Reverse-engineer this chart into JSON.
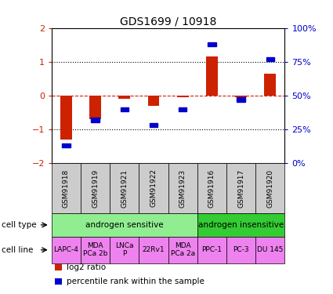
{
  "title": "GDS1699 / 10918",
  "samples": [
    "GSM91918",
    "GSM91919",
    "GSM91921",
    "GSM91922",
    "GSM91923",
    "GSM91916",
    "GSM91917",
    "GSM91920"
  ],
  "log2_ratio": [
    -1.3,
    -0.7,
    -0.1,
    -0.3,
    -0.05,
    1.15,
    -0.05,
    0.65
  ],
  "percentile_rank": [
    13,
    32,
    40,
    28,
    40,
    88,
    47,
    77
  ],
  "cell_type_groups": [
    {
      "label": "androgen sensitive",
      "start": 0,
      "end": 5,
      "color": "#90EE90"
    },
    {
      "label": "androgen insensitive",
      "start": 5,
      "end": 8,
      "color": "#33CC33"
    }
  ],
  "cell_lines": [
    {
      "label": "LAPC-4",
      "start": 0,
      "end": 1
    },
    {
      "label": "MDA\nPCa 2b",
      "start": 1,
      "end": 2
    },
    {
      "label": "LNCa\nP",
      "start": 2,
      "end": 3
    },
    {
      "label": "22Rv1",
      "start": 3,
      "end": 4
    },
    {
      "label": "MDA\nPCa 2a",
      "start": 4,
      "end": 5
    },
    {
      "label": "PPC-1",
      "start": 5,
      "end": 6
    },
    {
      "label": "PC-3",
      "start": 6,
      "end": 7
    },
    {
      "label": "DU 145",
      "start": 7,
      "end": 8
    }
  ],
  "cell_line_color": "#EE82EE",
  "bar_color": "#CC2200",
  "dot_color": "#0000CC",
  "ylim_left": [
    -2,
    2
  ],
  "ylim_right": [
    0,
    100
  ],
  "yticks_left": [
    -2,
    -1,
    0,
    1,
    2
  ],
  "yticks_right": [
    0,
    25,
    50,
    75,
    100
  ],
  "yticklabels_right": [
    "0%",
    "25%",
    "50%",
    "75%",
    "100%"
  ],
  "legend_items": [
    {
      "color": "#CC2200",
      "label": "log2 ratio"
    },
    {
      "color": "#0000CC",
      "label": "percentile rank within the sample"
    }
  ],
  "bar_color_red": "#CC2200",
  "dot_color_blue": "#0000CC",
  "sample_box_color": "#CCCCCC",
  "cell_line_fontsize": 6.5,
  "sample_fontsize": 6.5,
  "title_fontsize": 10
}
